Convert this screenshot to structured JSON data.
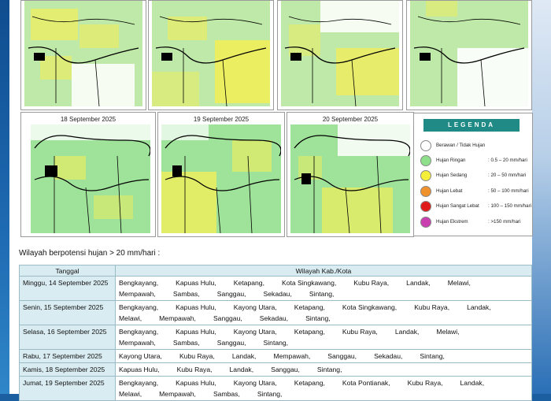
{
  "maps": [
    {
      "date": ""
    },
    {
      "date": ""
    },
    {
      "date": ""
    },
    {
      "date": ""
    },
    {
      "date": "18 September 2025"
    },
    {
      "date": "19 September 2025"
    },
    {
      "date": "20 September 2025"
    }
  ],
  "legend": {
    "title": "LEGENDA",
    "items": [
      {
        "name": "Berawan / Tidak Hujan",
        "range": "",
        "color": "#ffffff"
      },
      {
        "name": "Hujan Ringan",
        "range": ": 0.5 – 20 mm/hari",
        "color": "#8fe08a"
      },
      {
        "name": "Hujan Sedang",
        "range": ": 20 – 50 mm/hari",
        "color": "#f5ef3a"
      },
      {
        "name": "Hujan Lebat",
        "range": ": 50 – 100 mm/hari",
        "color": "#f0922b"
      },
      {
        "name": "Hujan Sangat Lebat",
        "range": ": 100 – 150 mm/hari",
        "color": "#e01b1b"
      },
      {
        "name": "Hujan Ekstrem",
        "range": ": >150 mm/hari",
        "color": "#c93fb0"
      }
    ]
  },
  "section_heading": "Wilayah berpotensi hujan > 20 mm/hari :",
  "table": {
    "col_date": "Tanggal",
    "col_area": "Wilayah Kab./Kota",
    "rows": [
      {
        "date": "Minggu, 14 September 2025",
        "areas": [
          "Bengkayang,",
          "Kapuas Hulu,",
          "Ketapang,",
          "Kota Singkawang,",
          "Kubu Raya,",
          "Landak,",
          "Melawi,",
          "Mempawah,",
          "Sambas,",
          "Sanggau,",
          "Sekadau,",
          "Sintang,"
        ]
      },
      {
        "date": "Senin, 15 September 2025",
        "areas": [
          "Bengkayang,",
          "Kapuas Hulu,",
          "Kayong Utara,",
          "Ketapang,",
          "Kota Singkawang,",
          "Kubu Raya,",
          "Landak,",
          "Melawi,",
          "Mempawah,",
          "Sanggau,",
          "Sekadau,",
          "Sintang,"
        ]
      },
      {
        "date": "Selasa, 16 September 2025",
        "areas": [
          "Bengkayang,",
          "Kapuas Hulu,",
          "Kayong Utara,",
          "Ketapang,",
          "Kubu Raya,",
          "Landak,",
          "Melawi,",
          "Mempawah,",
          "Sambas,",
          "Sanggau,",
          "Sintang,"
        ]
      },
      {
        "date": "Rabu, 17 September 2025",
        "areas": [
          "Kayong Utara,",
          "Kubu Raya,",
          "Landak,",
          "Mempawah,",
          "Sanggau,",
          "Sekadau,",
          "Sintang,"
        ]
      },
      {
        "date": "Kamis, 18 September 2025",
        "areas": [
          "Kapuas Hulu,",
          "Kubu Raya,",
          "Landak,",
          "Sanggau,",
          "Sintang,"
        ]
      },
      {
        "date": "Jumat, 19 September 2025",
        "areas": [
          "Bengkayang,",
          "Kapuas Hulu,",
          "Kayong Utara,",
          "Ketapang,",
          "Kota Pontianak,",
          "Kubu Raya,",
          "Landak,",
          "Melawi,",
          "Mempawah,",
          "Sambas,",
          "Sintang,"
        ]
      }
    ]
  }
}
